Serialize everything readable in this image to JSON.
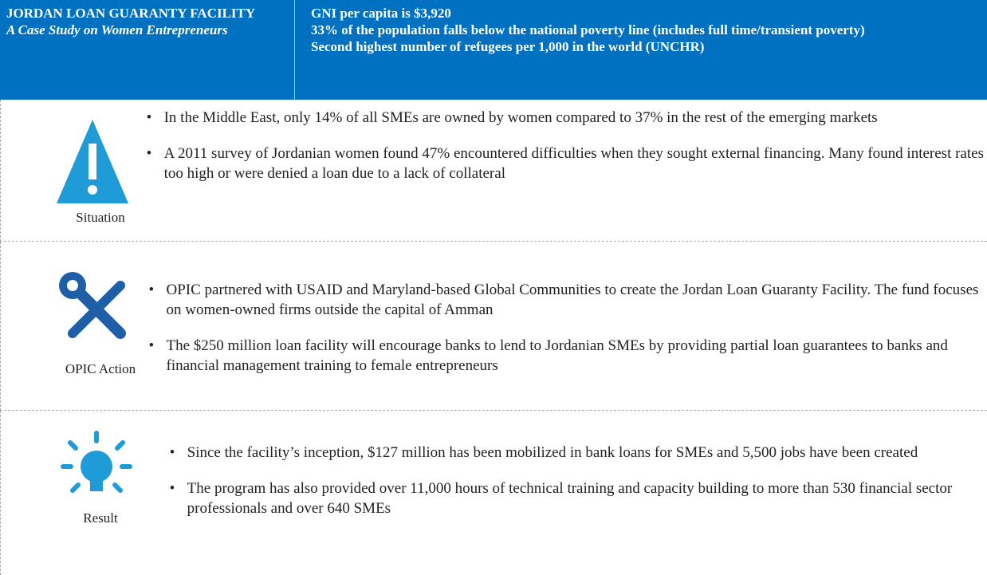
{
  "header": {
    "title": "JORDAN LOAN GUARANTY FACILITY",
    "subtitle": "A Case Study on Women Entrepreneurs",
    "facts": [
      "GNI per capita is $3,920",
      "33% of the population falls below the national poverty line (includes full time/transient poverty)",
      "Second highest number of refugees per 1,000 in the world (UNCHR)"
    ]
  },
  "sections": [
    {
      "label": "Situation",
      "bullets": [
        "In the Middle East, only 14% of all SMEs are owned by women compared to 37% in the rest of the emerging markets",
        "A 2011 survey of Jordanian women found 47% encountered difficulties when they sought external financing. Many found interest rates too high or were denied a loan due to a lack of collateral"
      ]
    },
    {
      "label": "OPIC Action",
      "bullets": [
        "OPIC partnered with USAID and Maryland-based Global Communities to create the Jordan Loan Guaranty Facility. The fund focuses on women-owned firms outside the capital of Amman",
        "The $250 million loan facility will encourage banks to lend to Jordanian SMEs by providing partial loan guarantees to banks and financial management training to female entrepreneurs"
      ]
    },
    {
      "label": "Result",
      "bullets": [
        "Since the facility’s inception, $127 million has been mobilized in bank loans for SMEs and 5,500 jobs have been created",
        "The program has also provided over 11,000 hours of technical training and capacity building to more than 530 financial sector professionals and over 640 SMEs"
      ]
    }
  ]
}
